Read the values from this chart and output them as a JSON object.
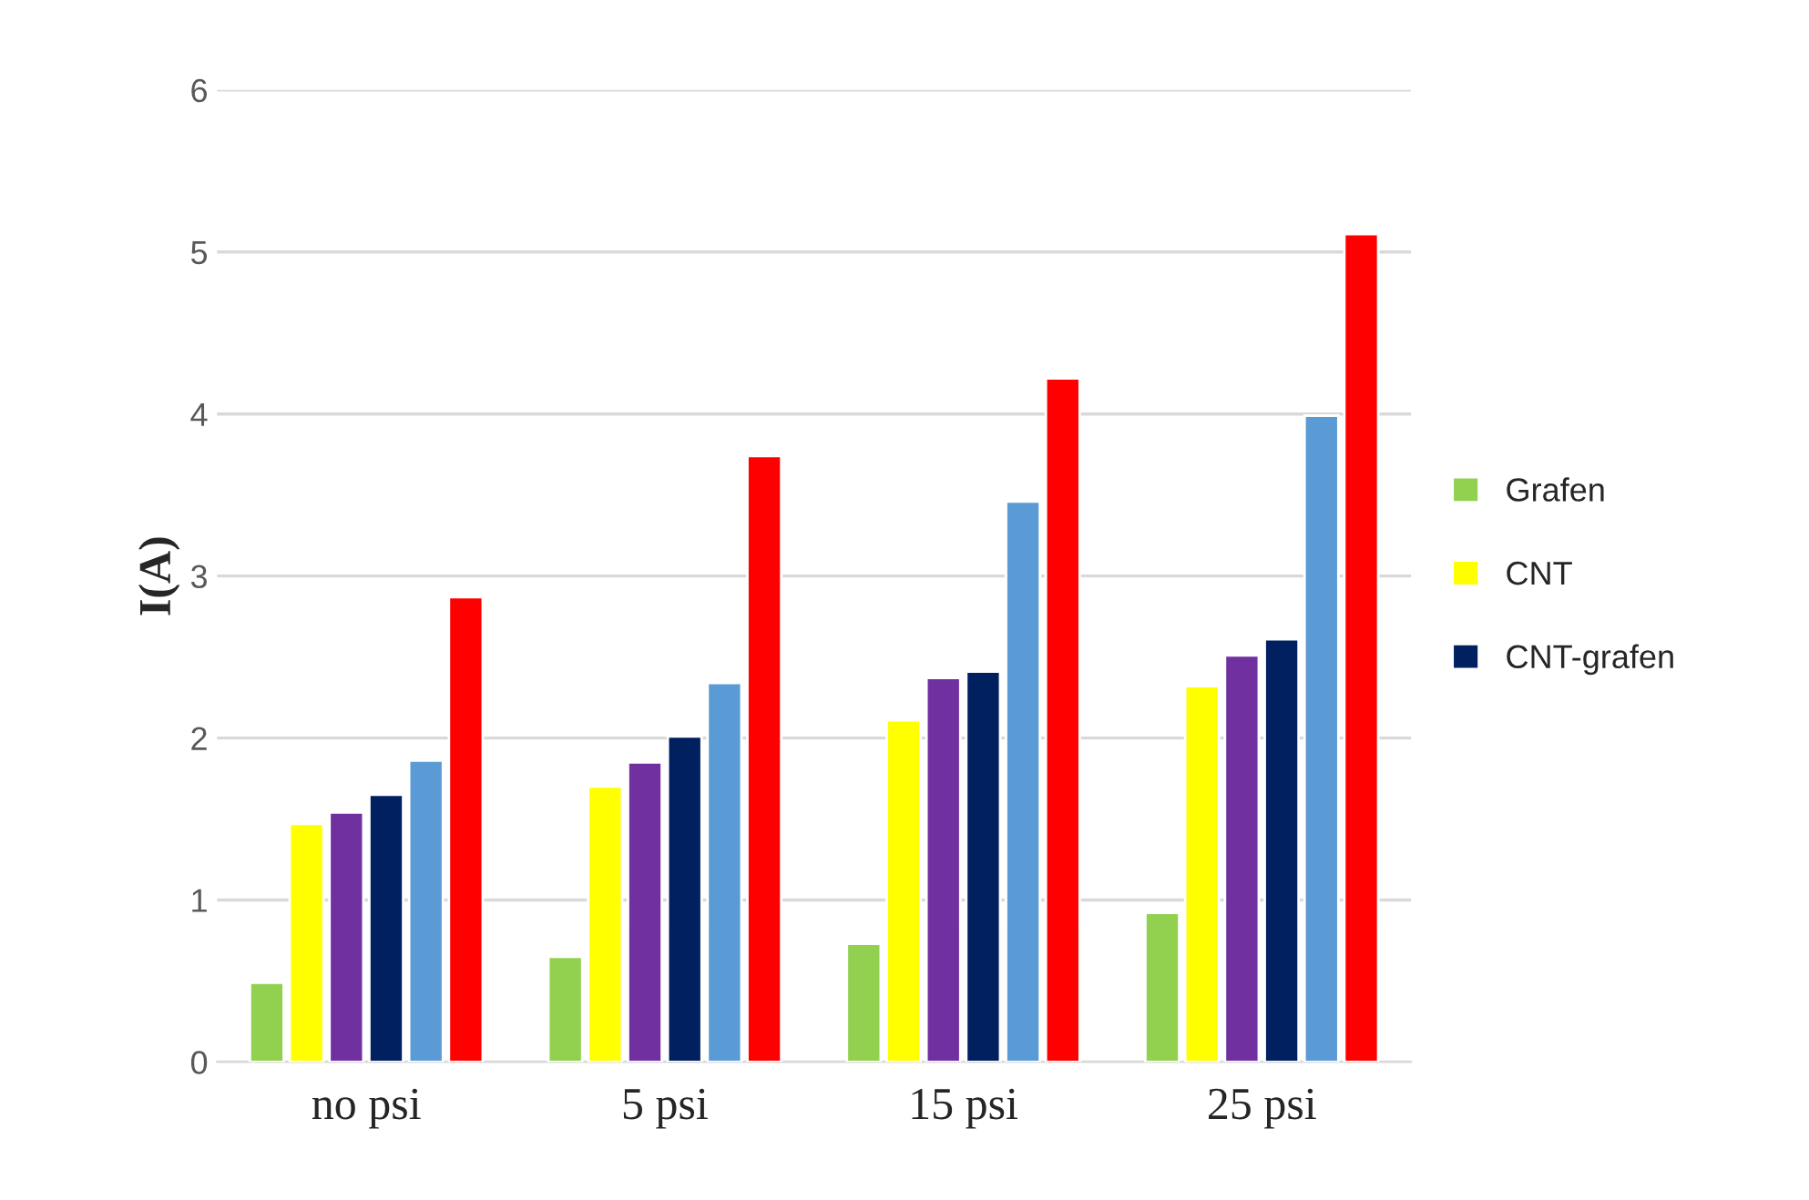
{
  "chart_data": {
    "type": "bar",
    "ylabel": "I(A)",
    "categories": [
      "no psi",
      "5 psi",
      "15 psi",
      "25 psi"
    ],
    "series": [
      {
        "name": "Grafen",
        "color": "#92d050",
        "values": [
          0.49,
          0.65,
          0.73,
          0.92
        ]
      },
      {
        "name": "CNT",
        "color": "#ffff00",
        "values": [
          1.47,
          1.7,
          2.11,
          2.32
        ]
      },
      {
        "color": "#7030a0",
        "values": [
          1.54,
          1.85,
          2.37,
          2.51
        ]
      },
      {
        "name": "CNT-grafen",
        "color": "#002060",
        "values": [
          1.65,
          2.01,
          2.41,
          2.61
        ]
      },
      {
        "color": "#5b9bd5",
        "values": [
          1.86,
          2.34,
          3.46,
          3.99
        ]
      },
      {
        "color": "#ff0000",
        "values": [
          2.87,
          3.74,
          4.22,
          5.11
        ]
      }
    ],
    "ylim": [
      0,
      6
    ],
    "yticks": [
      0,
      1,
      2,
      3,
      4,
      5,
      6
    ],
    "grid": "y",
    "legend": "right"
  }
}
